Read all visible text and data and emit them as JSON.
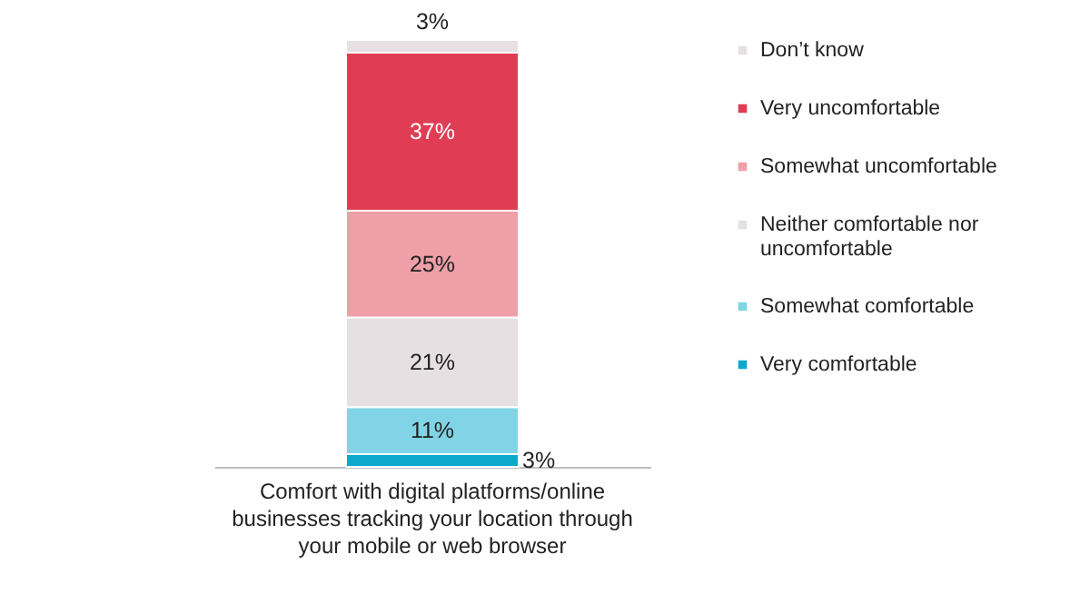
{
  "chart_data": {
    "type": "bar",
    "stacked": true,
    "categories": [
      "Comfort with digital platforms/online businesses tracking your location through your mobile or web browser"
    ],
    "legend": "right",
    "series": [
      {
        "name": "Very comfortable",
        "color": "#0ea8cc",
        "values": [
          3
        ],
        "value_labels": [
          "3%"
        ]
      },
      {
        "name": "Somewhat comfortable",
        "color": "#80d4e6",
        "values": [
          11
        ],
        "value_labels": [
          "11%"
        ]
      },
      {
        "name": "Neither comfortable nor uncomfortable",
        "color": "#e6e0e3",
        "values": [
          21
        ],
        "value_labels": [
          "21%"
        ]
      },
      {
        "name": "Somewhat uncomfortable",
        "color": "#ee9fa8",
        "values": [
          25
        ],
        "value_labels": [
          "25%"
        ]
      },
      {
        "name": "Very uncomfortable",
        "color": "#e03d54",
        "values": [
          37
        ],
        "value_labels": [
          "37%"
        ]
      },
      {
        "name": "Don’t know",
        "color": "#e6e0e3",
        "values": [
          3
        ],
        "value_labels": [
          "3%"
        ]
      }
    ]
  }
}
